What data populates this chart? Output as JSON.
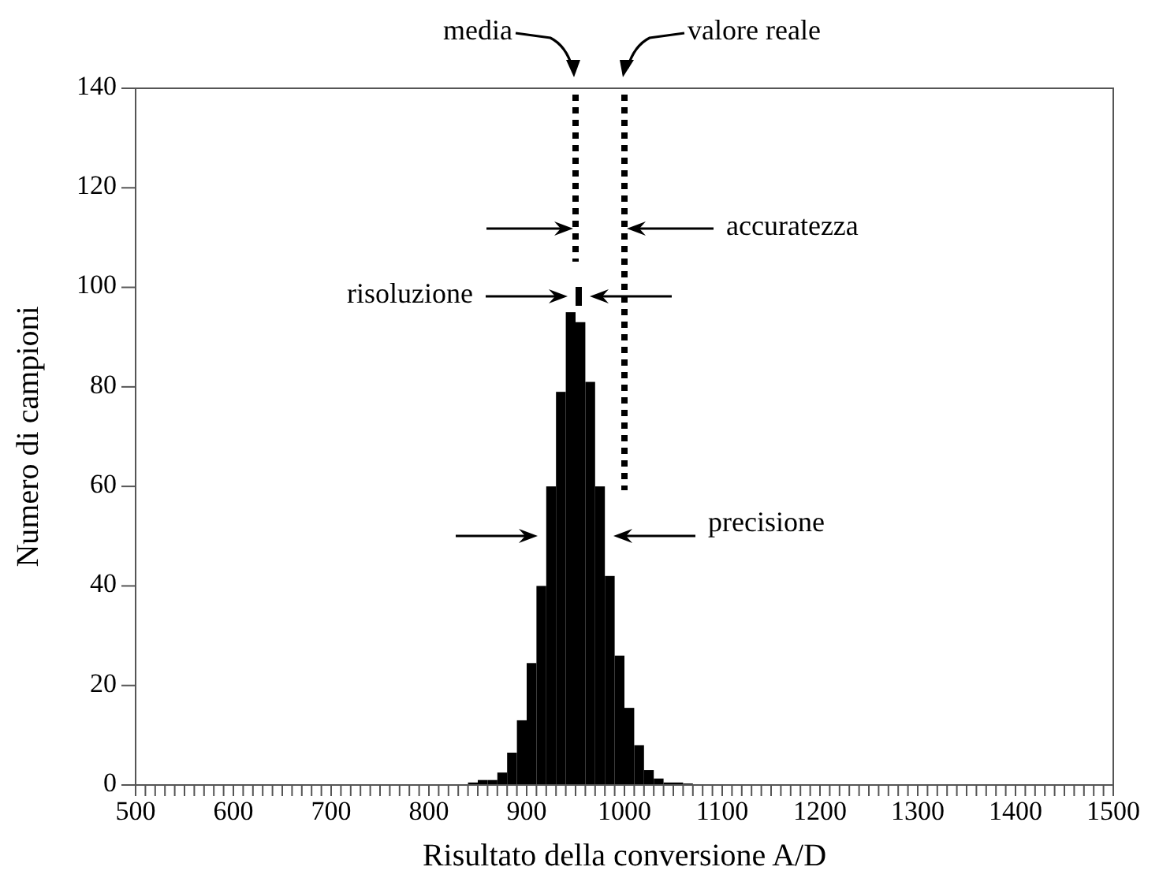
{
  "chart_data": {
    "type": "histogram",
    "xlabel": "Risultato della conversione A/D",
    "ylabel": "Numero di campioni",
    "bins": [
      840,
      850,
      860,
      870,
      880,
      890,
      900,
      910,
      920,
      930,
      940,
      950,
      960,
      970,
      980,
      990,
      1000,
      1010,
      1020,
      1030,
      1040,
      1050,
      1060,
      1070
    ],
    "values": [
      0.5,
      1,
      1,
      2.5,
      6.5,
      13,
      24.5,
      40,
      60,
      79,
      95,
      93,
      81,
      60,
      42,
      26,
      15.5,
      8,
      3,
      1.3,
      0.5,
      0.5,
      0.3
    ],
    "color": "#000000",
    "xlim": [
      500,
      1500
    ],
    "xticks": [
      500,
      {
        "value": 510,
        "label": null
      },
      {
        "value": 520,
        "label": null
      },
      {
        "value": 530,
        "label": null
      },
      {
        "value": 540,
        "label": null
      },
      {
        "value": 550,
        "label": null
      },
      {
        "value": 560,
        "label": null
      },
      {
        "value": 570,
        "label": null
      },
      {
        "value": 580,
        "label": null
      },
      {
        "value": 590,
        "label": null
      },
      600,
      {
        "value": 610,
        "label": null
      },
      {
        "value": 620,
        "label": null
      },
      {
        "value": 630,
        "label": null
      },
      {
        "value": 640,
        "label": null
      },
      {
        "value": 650,
        "label": null
      },
      {
        "value": 660,
        "label": null
      },
      {
        "value": 670,
        "label": null
      },
      {
        "value": 680,
        "label": null
      },
      {
        "value": 690,
        "label": null
      },
      700,
      {
        "value": 710,
        "label": null
      },
      {
        "value": 720,
        "label": null
      },
      {
        "value": 730,
        "label": null
      },
      {
        "value": 740,
        "label": null
      },
      {
        "value": 750,
        "label": null
      },
      {
        "value": 760,
        "label": null
      },
      {
        "value": 770,
        "label": null
      },
      {
        "value": 780,
        "label": null
      },
      {
        "value": 790,
        "label": null
      },
      800,
      {
        "value": 810,
        "label": null
      },
      {
        "value": 820,
        "label": null
      },
      {
        "value": 830,
        "label": null
      },
      {
        "value": 840,
        "label": null
      },
      {
        "value": 850,
        "label": null
      },
      {
        "value": 860,
        "label": null
      },
      {
        "value": 870,
        "label": null
      },
      {
        "value": 880,
        "label": null
      },
      {
        "value": 890,
        "label": null
      },
      900,
      {
        "value": 910,
        "label": null
      },
      {
        "value": 920,
        "label": null
      },
      {
        "value": 930,
        "label": null
      },
      {
        "value": 940,
        "label": null
      },
      {
        "value": 950,
        "label": null
      },
      {
        "value": 960,
        "label": null
      },
      {
        "value": 970,
        "label": null
      },
      {
        "value": 980,
        "label": null
      },
      {
        "value": 990,
        "label": null
      },
      1000,
      {
        "value": 1010,
        "label": null
      },
      {
        "value": 1020,
        "label": null
      },
      {
        "value": 1030,
        "label": null
      },
      {
        "value": 1040,
        "label": null
      },
      {
        "value": 1050,
        "label": null
      },
      {
        "value": 1060,
        "label": null
      },
      {
        "value": 1070,
        "label": null
      },
      {
        "value": 1080,
        "label": null
      },
      {
        "value": 1090,
        "label": null
      },
      1100,
      {
        "value": 1110,
        "label": null
      },
      {
        "value": 1120,
        "label": null
      },
      {
        "value": 1130,
        "label": null
      },
      {
        "value": 1140,
        "label": null
      },
      {
        "value": 1150,
        "label": null
      },
      {
        "value": 1160,
        "label": null
      },
      {
        "value": 1170,
        "label": null
      },
      {
        "value": 1180,
        "label": null
      },
      {
        "value": 1190,
        "label": null
      },
      1200,
      {
        "value": 1210,
        "label": null
      },
      {
        "value": 1220,
        "label": null
      },
      {
        "value": 1230,
        "label": null
      },
      {
        "value": 1240,
        "label": null
      },
      {
        "value": 1250,
        "label": null
      },
      {
        "value": 1260,
        "label": null
      },
      {
        "value": 1270,
        "label": null
      },
      {
        "value": 1280,
        "label": null
      },
      {
        "value": 1290,
        "label": null
      },
      1300,
      {
        "value": 1310,
        "label": null
      },
      {
        "value": 1320,
        "label": null
      },
      {
        "value": 1330,
        "label": null
      },
      {
        "value": 1340,
        "label": null
      },
      {
        "value": 1350,
        "label": null
      },
      {
        "value": 1360,
        "label": null
      },
      {
        "value": 1370,
        "label": null
      },
      {
        "value": 1380,
        "label": null
      },
      {
        "value": 1390,
        "label": null
      },
      1400,
      {
        "value": 1410,
        "label": null
      },
      {
        "value": 1420,
        "label": null
      },
      {
        "value": 1430,
        "label": null
      },
      {
        "value": 1440,
        "label": null
      },
      {
        "value": 1450,
        "label": null
      },
      {
        "value": 1460,
        "label": null
      },
      {
        "value": 1470,
        "label": null
      },
      {
        "value": 1480,
        "label": null
      },
      {
        "value": 1490,
        "label": null
      },
      1500
    ],
    "ylim": [
      0,
      140
    ],
    "yticks": [
      0,
      20,
      40,
      60,
      80,
      100,
      120,
      140
    ],
    "grid": false,
    "ref_lines": [
      {
        "axis": "x",
        "value": 950,
        "label": "media",
        "line_style": "dotted",
        "color": "#000000"
      },
      {
        "axis": "x",
        "value": 1000,
        "label": "valore reale",
        "line_style": "dotted",
        "color": "#000000"
      }
    ],
    "annotations": [
      "accuratezza",
      "risoluzione",
      "precisione"
    ]
  }
}
